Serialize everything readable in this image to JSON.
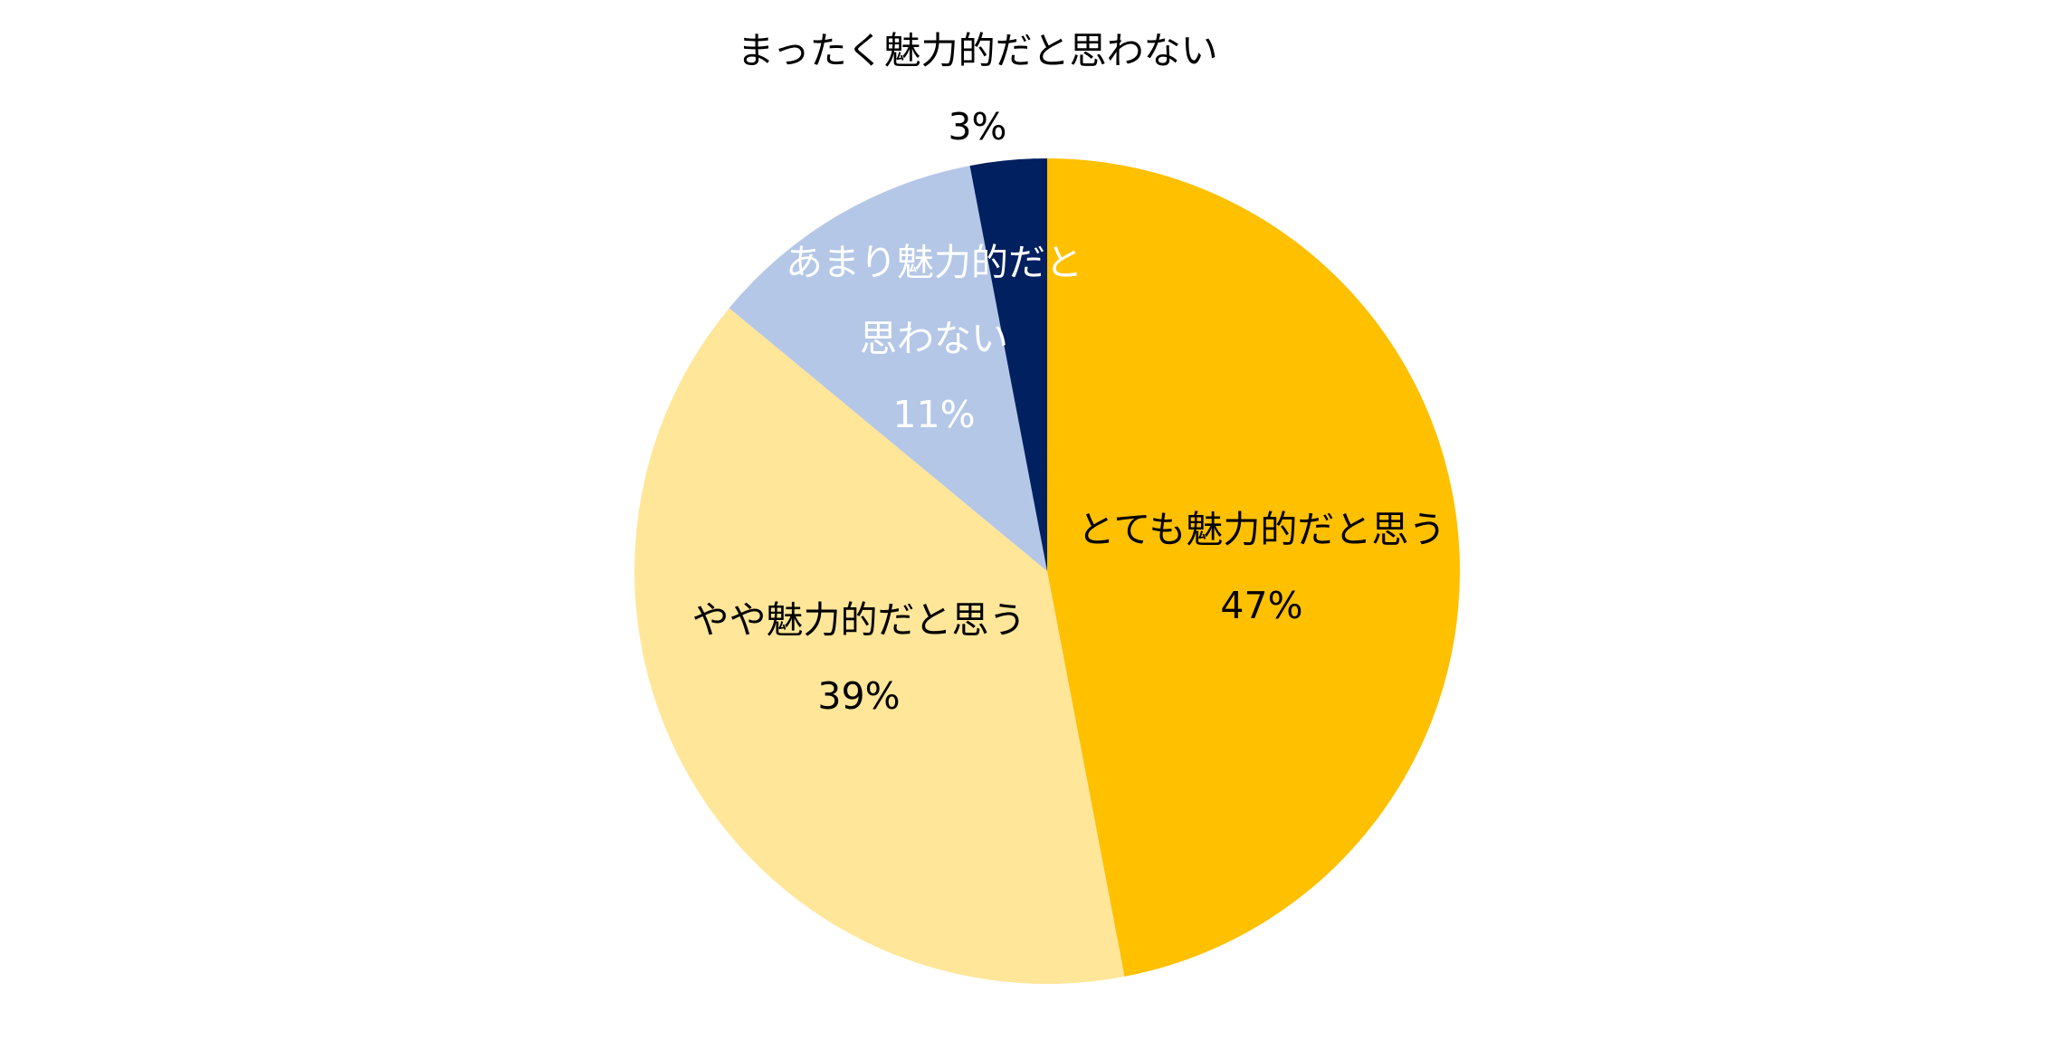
{
  "chart_data": {
    "type": "pie",
    "categories": [
      "とても魅力的だと思う",
      "やや魅力的だと思う",
      "あまり魅力的だと思わない",
      "まったく魅力的だと思わない"
    ],
    "values": [
      47,
      39,
      11,
      3
    ],
    "value_labels": [
      "47%",
      "39%",
      "11%",
      "3%"
    ],
    "colors": [
      "#FFC000",
      "#FFE699",
      "#B4C7E7",
      "#002060"
    ]
  }
}
